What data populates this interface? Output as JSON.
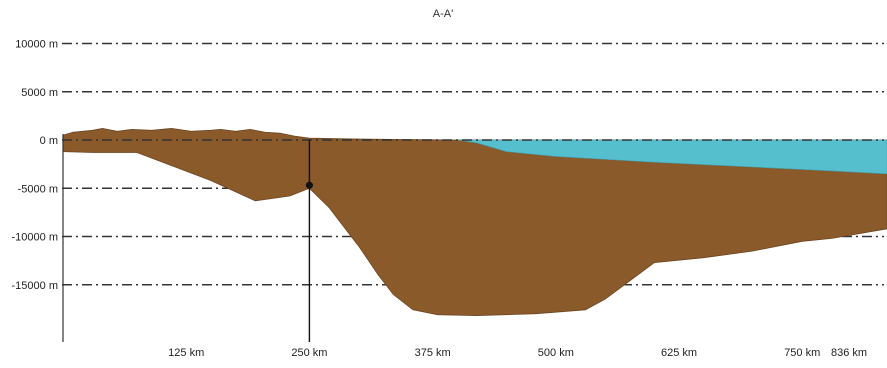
{
  "title": "A-A'",
  "colors": {
    "sediment": "#8a5a2b",
    "water": "#55bfcd",
    "grid": "#333333",
    "borehole": "#111111"
  },
  "y_axis": {
    "unit": "m",
    "ticks": [
      {
        "value": 10000,
        "label": "10000 m"
      },
      {
        "value": 5000,
        "label": "5000 m"
      },
      {
        "value": 0,
        "label": "0 m"
      },
      {
        "value": -5000,
        "label": "-5000 m"
      },
      {
        "value": -10000,
        "label": "-10000 m"
      },
      {
        "value": -15000,
        "label": "-15000 m"
      }
    ]
  },
  "x_axis": {
    "unit": "km",
    "range": [
      0,
      836
    ],
    "ticks": [
      {
        "value": 125,
        "label": "125 km"
      },
      {
        "value": 250,
        "label": "250 km"
      },
      {
        "value": 375,
        "label": "375 km"
      },
      {
        "value": 500,
        "label": "500 km"
      },
      {
        "value": 625,
        "label": "625 km"
      },
      {
        "value": 750,
        "label": "750 km"
      },
      {
        "value": 836,
        "label": "836 km"
      }
    ]
  },
  "borehole": {
    "x_km": 250,
    "marker_depth_m": -5000
  },
  "profile": {
    "top_surface": [
      [
        0,
        500
      ],
      [
        10,
        800
      ],
      [
        30,
        1000
      ],
      [
        40,
        1200
      ],
      [
        55,
        900
      ],
      [
        70,
        1100
      ],
      [
        90,
        1000
      ],
      [
        110,
        1200
      ],
      [
        130,
        900
      ],
      [
        150,
        1000
      ],
      [
        160,
        1100
      ],
      [
        175,
        900
      ],
      [
        190,
        1100
      ],
      [
        205,
        800
      ],
      [
        220,
        700
      ],
      [
        235,
        400
      ],
      [
        250,
        200
      ],
      [
        300,
        100
      ],
      [
        400,
        0
      ],
      [
        836,
        0
      ]
    ],
    "water_bottom": [
      [
        400,
        0
      ],
      [
        420,
        -300
      ],
      [
        450,
        -1200
      ],
      [
        500,
        -1700
      ],
      [
        600,
        -2300
      ],
      [
        700,
        -2800
      ],
      [
        780,
        -3200
      ],
      [
        836,
        -3500
      ]
    ],
    "basement": [
      [
        0,
        -1200
      ],
      [
        30,
        -1300
      ],
      [
        75,
        -1300
      ],
      [
        150,
        -4200
      ],
      [
        195,
        -6300
      ],
      [
        230,
        -5800
      ],
      [
        250,
        -5000
      ],
      [
        270,
        -7000
      ],
      [
        300,
        -11000
      ],
      [
        320,
        -14000
      ],
      [
        335,
        -16000
      ],
      [
        355,
        -17600
      ],
      [
        380,
        -18100
      ],
      [
        420,
        -18200
      ],
      [
        480,
        -18000
      ],
      [
        530,
        -17600
      ],
      [
        550,
        -16500
      ],
      [
        600,
        -12700
      ],
      [
        650,
        -12200
      ],
      [
        700,
        -11500
      ],
      [
        750,
        -10500
      ],
      [
        780,
        -10200
      ],
      [
        836,
        -9200
      ]
    ]
  }
}
